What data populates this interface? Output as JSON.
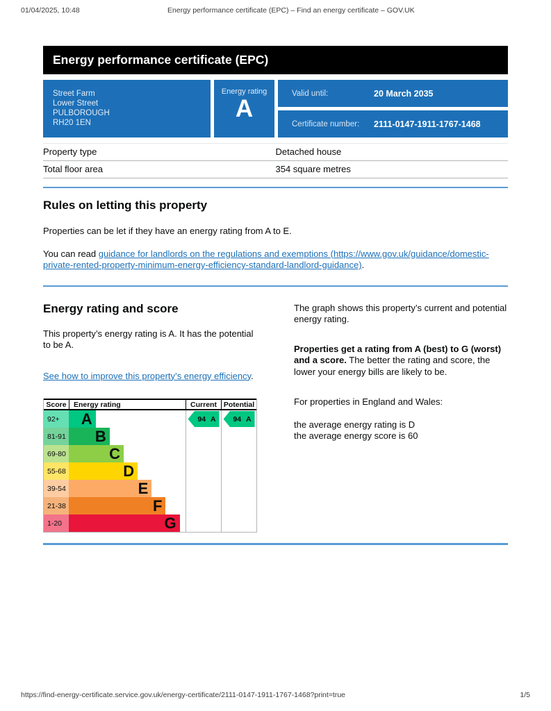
{
  "print_header": {
    "datetime": "01/04/2025, 10:48",
    "document_title": "Energy performance certificate (EPC) – Find an energy certificate – GOV.UK"
  },
  "colors": {
    "govuk_blue": "#1d70b8",
    "banner_bg": "#000000",
    "divider_blue": "#5b9bd5",
    "link_blue": "#1d70b8"
  },
  "banner": {
    "title": "Energy performance certificate (EPC)"
  },
  "summary": {
    "address_line1": "Street Farm",
    "address_line2": "Lower Street",
    "address_line3": "PULBOROUGH",
    "address_line4": "RH20 1EN",
    "energy_rating_label": "Energy rating",
    "energy_rating_value": "A",
    "valid_until_label": "Valid until:",
    "valid_until_value": "20 March 2035",
    "certificate_number_label": "Certificate number:",
    "certificate_number_value": "2111-0147-1911-1767-1468"
  },
  "property_table": {
    "rows": [
      {
        "label": "Property type",
        "value": "Detached house"
      },
      {
        "label": "Total floor area",
        "value": "354 square metres"
      }
    ]
  },
  "rules_section": {
    "heading": "Rules on letting this property",
    "paragraph1": "Properties can be let if they have an energy rating from A to E.",
    "paragraph2_prefix": "You can read ",
    "guidance_link_text": "guidance for landlords on the regulations and exemptions (https://www.gov.uk/guidance/domestic-private-rented-property-minimum-energy-efficiency-standard-landlord-guidance)",
    "paragraph2_suffix": "."
  },
  "rating_section": {
    "heading": "Energy rating and score",
    "paragraph1": "This property’s energy rating is A. It has the potential to be A.",
    "improve_link_text": "See how to improve this property’s energy efficiency",
    "improve_link_suffix": ".",
    "right_column": {
      "paragraph1": "The graph shows this property’s current and potential energy rating.",
      "paragraph2_bold": "Properties get a rating from A (best) to G (worst) and a score.",
      "paragraph2_rest": " The better the rating and score, the lower your energy bills are likely to be.",
      "paragraph3": "For properties in England and Wales:",
      "average_rating_line": "the average energy rating is D",
      "average_score_line": "the average energy score is 60"
    }
  },
  "chart_data": {
    "type": "bar",
    "title": "Energy rating and score",
    "columns": [
      "Score",
      "Energy rating",
      "Current",
      "Potential"
    ],
    "bands": [
      {
        "score_range": "92+",
        "letter": "A",
        "color": "#00c781",
        "score_bg": "#66dfb3",
        "width": "23%"
      },
      {
        "score_range": "81-91",
        "letter": "B",
        "color": "#19b459",
        "score_bg": "#75d29b",
        "width": "35%"
      },
      {
        "score_range": "69-80",
        "letter": "C",
        "color": "#8dce46",
        "score_bg": "#bbe28f",
        "width": "47%"
      },
      {
        "score_range": "55-68",
        "letter": "D",
        "color": "#ffd500",
        "score_bg": "#ffe566",
        "width": "59%"
      },
      {
        "score_range": "39-54",
        "letter": "E",
        "color": "#fcaa65",
        "score_bg": "#fdcca3",
        "width": "71%"
      },
      {
        "score_range": "21-38",
        "letter": "F",
        "color": "#ef8023",
        "score_bg": "#f5b37b",
        "width": "83%"
      },
      {
        "score_range": "1-20",
        "letter": "G",
        "color": "#e9153b",
        "score_bg": "#f2738a",
        "width": "95%"
      }
    ],
    "current": {
      "score": "94",
      "letter": "A",
      "color": "#00c781"
    },
    "potential": {
      "score": "94",
      "letter": "A",
      "color": "#00c781"
    }
  },
  "footer": {
    "url": "https://find-energy-certificate.service.gov.uk/energy-certificate/2111-0147-1911-1767-1468?print=true",
    "page_indicator": "1/5"
  }
}
